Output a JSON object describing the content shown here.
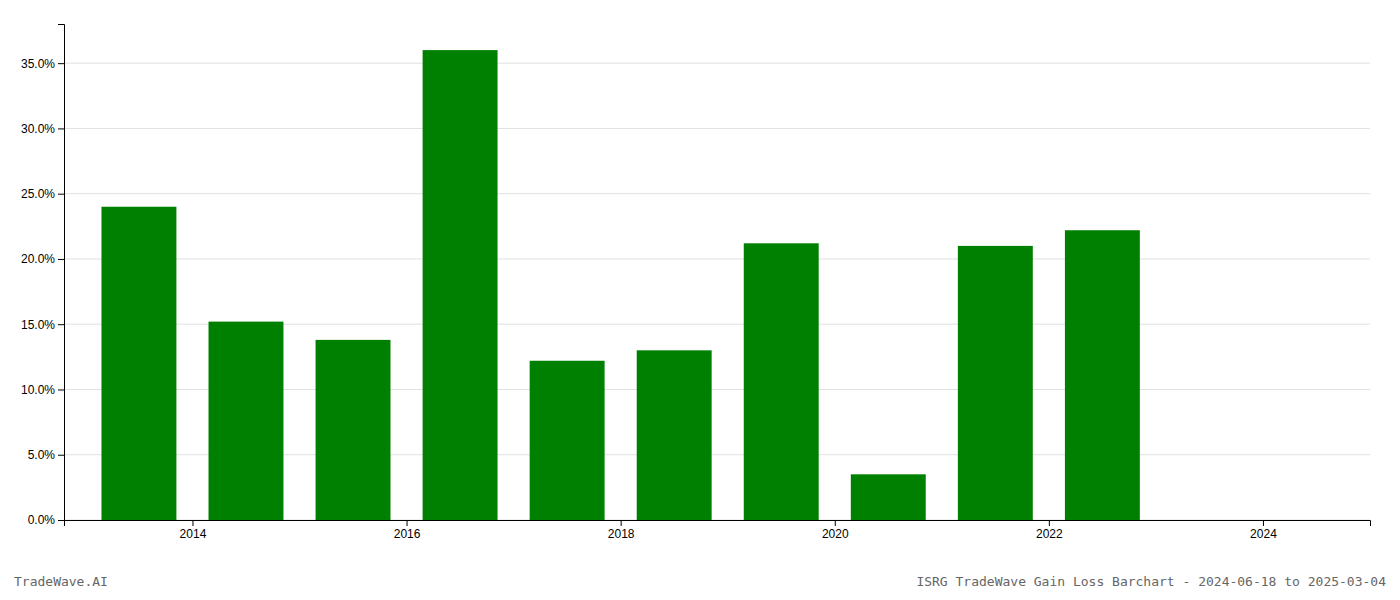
{
  "chart_data": {
    "type": "bar",
    "x": [
      2013.5,
      2014.5,
      2015.5,
      2016.5,
      2017.5,
      2018.5,
      2019.5,
      2020.5,
      2021.5,
      2022.5,
      2023.5
    ],
    "values": [
      0.24,
      0.152,
      0.138,
      0.36,
      0.122,
      0.13,
      0.212,
      0.035,
      0.21,
      0.222,
      0.0
    ],
    "color": "#008000",
    "xlim": [
      2012.8,
      2025.0
    ],
    "xticks": [
      2014,
      2016,
      2018,
      2020,
      2022,
      2024
    ],
    "ylim": [
      0.0,
      0.38
    ],
    "yticks": [
      {
        "value": 0.0,
        "label": "0.0%"
      },
      {
        "value": 0.05,
        "label": "5.0%"
      },
      {
        "value": 0.1,
        "label": "10.0%"
      },
      {
        "value": 0.15,
        "label": "15.0%"
      },
      {
        "value": 0.2,
        "label": "20.0%"
      },
      {
        "value": 0.25,
        "label": "25.0%"
      },
      {
        "value": 0.3,
        "label": "30.0%"
      },
      {
        "value": 0.35,
        "label": "35.0%"
      }
    ],
    "grid": true,
    "annotations": [
      "TradeWave.AI",
      "ISRG TradeWave Gain Loss Barchart - 2024-06-18 to 2025-03-04"
    ]
  }
}
